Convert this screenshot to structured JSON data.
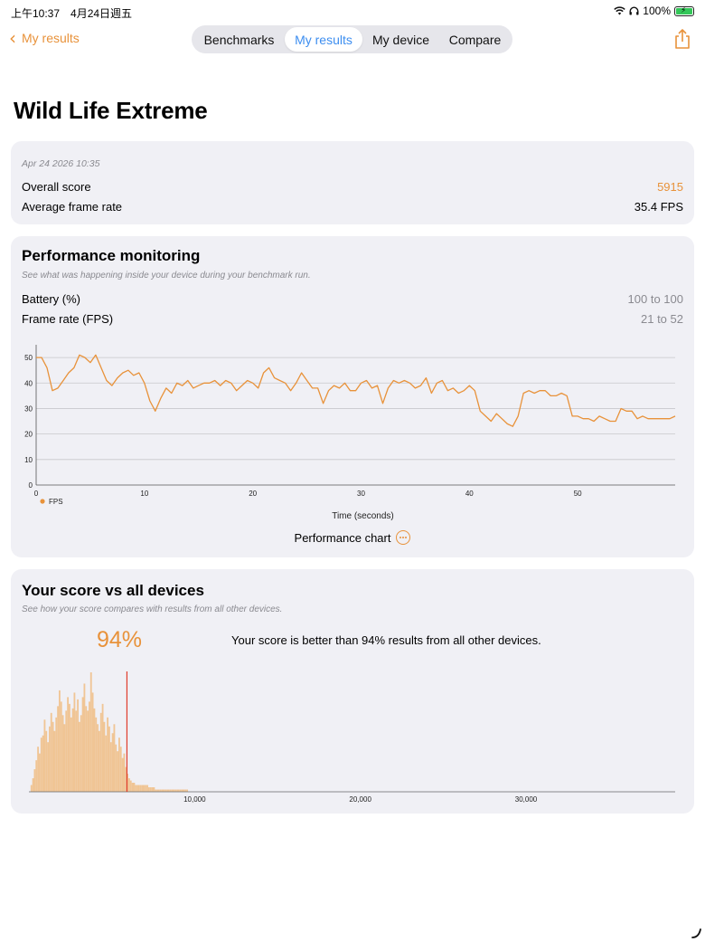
{
  "status_bar": {
    "time": "上午10:37　4月24日週五",
    "battery": "100%"
  },
  "nav": {
    "back_label": "My results",
    "segments": [
      "Benchmarks",
      "My results",
      "My device",
      "Compare"
    ],
    "active_segment": "My results",
    "share_icon": "share-icon",
    "accent_color": "#e8923a",
    "active_color": "#3d8ef0"
  },
  "title": "Wild Life Extreme",
  "summary": {
    "date": "Apr 24 2026 10:35",
    "overall_label": "Overall score",
    "overall_value": "5915",
    "fps_label": "Average frame rate",
    "fps_value": "35.4 FPS"
  },
  "performance": {
    "title": "Performance monitoring",
    "subtitle": "See what was happening inside your device during your benchmark run.",
    "battery_label": "Battery (%)",
    "battery_range": "100 to 100",
    "framerate_label": "Frame rate (FPS)",
    "framerate_range": "21 to 52",
    "chart_link": "Performance chart"
  },
  "comparison": {
    "title": "Your score vs all devices",
    "subtitle": "See how your score compares with results from all other devices.",
    "percent": "94%",
    "statement": "Your score is better than 94% results from all other devices."
  },
  "chart_data": [
    {
      "type": "line",
      "xlabel": "Time (seconds)",
      "ylabel": "",
      "xlim": [
        0,
        59
      ],
      "ylim": [
        0,
        55
      ],
      "x_ticks": [
        0,
        10,
        20,
        30,
        40,
        50
      ],
      "y_ticks": [
        0,
        10,
        20,
        30,
        40,
        50
      ],
      "grid": true,
      "legend": "bottom-left",
      "series": [
        {
          "name": "FPS",
          "color": "#e8923a",
          "x": [
            0,
            0.5,
            1,
            1.5,
            2,
            2.5,
            3,
            3.5,
            4,
            4.5,
            5,
            5.5,
            6,
            6.5,
            7,
            7.5,
            8,
            8.5,
            9,
            9.5,
            10,
            10.5,
            11,
            11.5,
            12,
            12.5,
            13,
            13.5,
            14,
            14.5,
            15,
            15.5,
            16,
            16.5,
            17,
            17.5,
            18,
            18.5,
            19,
            19.5,
            20,
            20.5,
            21,
            21.5,
            22,
            22.5,
            23,
            23.5,
            24,
            24.5,
            25,
            25.5,
            26,
            26.5,
            27,
            27.5,
            28,
            28.5,
            29,
            29.5,
            30,
            30.5,
            31,
            31.5,
            32,
            32.5,
            33,
            33.5,
            34,
            34.5,
            35,
            35.5,
            36,
            36.5,
            37,
            37.5,
            38,
            38.5,
            39,
            39.5,
            40,
            40.5,
            41,
            41.5,
            42,
            42.5,
            43,
            43.5,
            44,
            44.5,
            45,
            45.5,
            46,
            46.5,
            47,
            47.5,
            48,
            48.5,
            49,
            49.5,
            50,
            50.5,
            51,
            51.5,
            52,
            52.5,
            53,
            53.5,
            54,
            54.5,
            55,
            55.5,
            56,
            56.5,
            57,
            57.5,
            58,
            58.5,
            59
          ],
          "values": [
            50,
            50,
            46,
            37,
            38,
            41,
            44,
            46,
            51,
            50,
            48,
            51,
            46,
            41,
            39,
            42,
            44,
            45,
            43,
            44,
            40,
            33,
            29,
            34,
            38,
            36,
            40,
            39,
            41,
            38,
            39,
            40,
            40,
            41,
            39,
            41,
            40,
            37,
            39,
            41,
            40,
            38,
            44,
            46,
            42,
            41,
            40,
            37,
            40,
            44,
            41,
            38,
            38,
            32,
            37,
            39,
            38,
            40,
            37,
            37,
            40,
            41,
            38,
            39,
            32,
            38,
            41,
            40,
            41,
            40,
            38,
            39,
            42,
            36,
            40,
            41,
            37,
            38,
            36,
            37,
            39,
            37,
            29,
            27,
            25,
            28,
            26,
            24,
            23,
            27,
            36,
            37,
            36,
            37,
            37,
            35,
            35,
            36,
            35,
            27,
            27,
            26,
            26,
            25,
            27,
            26,
            25,
            25,
            30,
            29,
            29,
            26,
            27,
            26,
            26,
            26,
            26,
            26,
            27
          ]
        }
      ]
    },
    {
      "type": "bar",
      "title": "",
      "xlabel": "",
      "ylabel": "",
      "xlim": [
        0,
        39000
      ],
      "x_ticks": [
        10000,
        20000,
        30000
      ],
      "x_tick_labels": [
        "10,000",
        "20,000",
        "30,000"
      ],
      "bar_color": "#f0c595",
      "marker_value": 5915,
      "marker_color": "#e03c2c",
      "bin_width": 100,
      "bin_start": 100,
      "counts": [
        3,
        6,
        10,
        14,
        20,
        17,
        24,
        25,
        32,
        27,
        22,
        29,
        35,
        31,
        27,
        33,
        38,
        45,
        40,
        34,
        30,
        36,
        42,
        39,
        33,
        37,
        44,
        36,
        41,
        31,
        34,
        42,
        48,
        38,
        36,
        40,
        53,
        44,
        37,
        33,
        30,
        27,
        35,
        39,
        31,
        25,
        33,
        29,
        22,
        26,
        30,
        21,
        18,
        24,
        20,
        15,
        17,
        11,
        8,
        6,
        5,
        4,
        4,
        3,
        3,
        3,
        3,
        3,
        3,
        3,
        3,
        2,
        2,
        2,
        2,
        1,
        1,
        1,
        1,
        1,
        1,
        1,
        1,
        1,
        1,
        1,
        1,
        1,
        1,
        1,
        1,
        1,
        1,
        1,
        1
      ]
    }
  ]
}
